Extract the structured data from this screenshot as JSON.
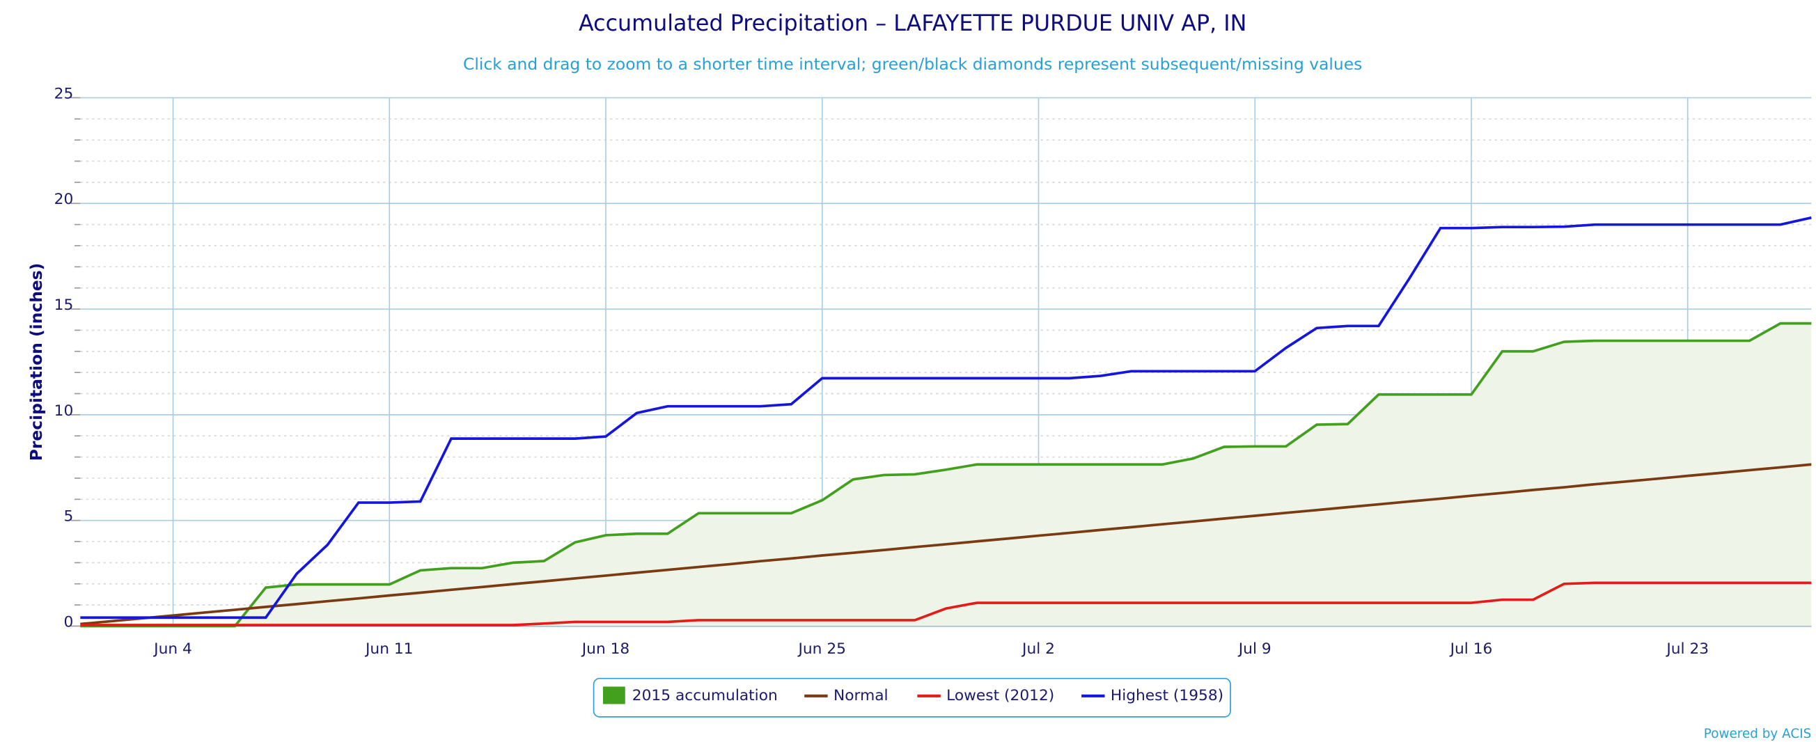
{
  "chart_data": {
    "type": "line",
    "title": "Accumulated Precipitation – LAFAYETTE PURDUE UNIV AP, IN",
    "subtitle": "Click and drag to zoom to a shorter time interval; green/black diamonds represent subsequent/missing values",
    "y_label": "Precipitation (inches)",
    "credit": "Powered by ACIS",
    "categories": [
      null,
      null,
      null,
      "Jun 4",
      null,
      null,
      null,
      null,
      null,
      null,
      "Jun 11",
      null,
      null,
      null,
      null,
      null,
      null,
      "Jun 18",
      null,
      null,
      null,
      null,
      null,
      null,
      "Jun 25",
      null,
      null,
      null,
      null,
      null,
      null,
      "Jul 2",
      null,
      null,
      null,
      null,
      null,
      null,
      "Jul 9",
      null,
      null,
      null,
      null,
      null,
      null,
      "Jul 16",
      null,
      null,
      null,
      null,
      null,
      null,
      "Jul 23",
      null,
      null,
      null,
      null
    ],
    "ylim": [
      0,
      25
    ],
    "yticks": [
      0,
      5,
      10,
      15,
      20,
      25
    ],
    "minor_yticks": [
      1,
      2,
      3,
      4,
      6,
      7,
      8,
      9,
      11,
      12,
      13,
      14,
      16,
      17,
      18,
      19,
      21,
      22,
      23,
      24
    ],
    "grid": true,
    "legend": "bottom",
    "series": [
      {
        "name": "2015 accumulation",
        "color": "#42a01e",
        "fill": "#eef5e8",
        "area": true,
        "values": [
          0,
          0,
          0,
          0,
          0,
          0,
          1.82,
          1.97,
          1.97,
          1.97,
          1.97,
          2.64,
          2.74,
          2.74,
          3.0,
          3.08,
          3.96,
          4.3,
          4.37,
          4.37,
          5.34,
          5.34,
          5.34,
          5.34,
          5.95,
          6.94,
          7.15,
          7.18,
          7.4,
          7.65,
          7.65,
          7.65,
          7.65,
          7.65,
          7.65,
          7.65,
          7.93,
          8.48,
          8.5,
          8.5,
          9.53,
          9.56,
          10.96,
          10.96,
          10.96,
          10.96,
          13.0,
          13.0,
          13.45,
          13.5,
          13.5,
          13.5,
          13.5,
          13.5,
          13.5,
          14.32,
          14.32
        ]
      },
      {
        "name": "Normal",
        "color": "#7a3a12",
        "values": [
          0.1,
          0.23,
          0.37,
          0.5,
          0.64,
          0.77,
          0.91,
          1.04,
          1.18,
          1.31,
          1.45,
          1.58,
          1.72,
          1.85,
          1.99,
          2.12,
          2.26,
          2.39,
          2.53,
          2.66,
          2.8,
          2.93,
          3.07,
          3.2,
          3.34,
          3.47,
          3.6,
          3.74,
          3.87,
          4.01,
          4.14,
          4.28,
          4.41,
          4.55,
          4.68,
          4.82,
          4.95,
          5.09,
          5.22,
          5.36,
          5.49,
          5.63,
          5.76,
          5.9,
          6.03,
          6.17,
          6.3,
          6.44,
          6.57,
          6.71,
          6.84,
          6.97,
          7.11,
          7.24,
          7.38,
          7.51,
          7.65
        ]
      },
      {
        "name": "Lowest (2012)",
        "color": "#e41b17",
        "values": [
          0.05,
          0.05,
          0.05,
          0.05,
          0.05,
          0.05,
          0.05,
          0.05,
          0.05,
          0.05,
          0.05,
          0.05,
          0.05,
          0.05,
          0.05,
          0.12,
          0.2,
          0.2,
          0.2,
          0.2,
          0.28,
          0.28,
          0.28,
          0.28,
          0.28,
          0.28,
          0.28,
          0.28,
          0.83,
          1.1,
          1.1,
          1.1,
          1.1,
          1.1,
          1.1,
          1.1,
          1.1,
          1.1,
          1.1,
          1.1,
          1.1,
          1.1,
          1.1,
          1.1,
          1.1,
          1.1,
          1.25,
          1.25,
          2.0,
          2.05,
          2.05,
          2.05,
          2.05,
          2.05,
          2.05,
          2.05,
          2.05
        ]
      },
      {
        "name": "Highest (1958)",
        "color": "#1515e0",
        "values": [
          0.4,
          0.4,
          0.4,
          0.4,
          0.4,
          0.4,
          0.4,
          2.48,
          3.85,
          5.84,
          5.84,
          5.9,
          8.87,
          8.87,
          8.87,
          8.87,
          8.87,
          8.97,
          10.08,
          10.4,
          10.4,
          10.4,
          10.4,
          10.5,
          11.73,
          11.73,
          11.73,
          11.73,
          11.73,
          11.73,
          11.73,
          11.73,
          11.73,
          11.84,
          12.06,
          12.06,
          12.06,
          12.06,
          12.06,
          13.16,
          14.1,
          14.2,
          14.2,
          16.46,
          18.83,
          18.83,
          18.88,
          18.88,
          18.9,
          19.0,
          19.0,
          19.0,
          19.0,
          19.0,
          19.0,
          19.0,
          19.33
        ]
      }
    ]
  }
}
